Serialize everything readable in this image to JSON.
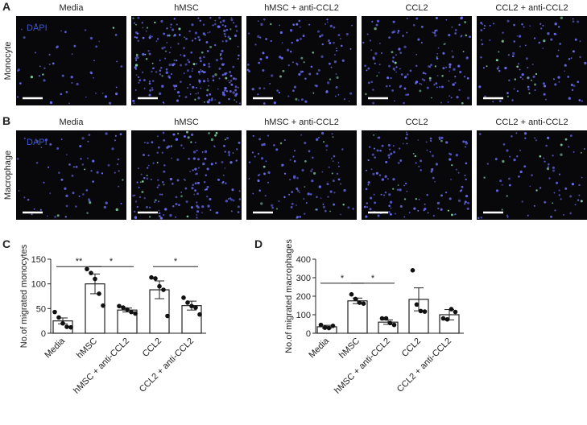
{
  "panels": [
    {
      "label": "A",
      "row_label": "Monocyte",
      "stain": "DAPI",
      "columns": [
        "Media",
        "hMSC",
        "hMSC + anti-CCL2",
        "CCL2",
        "CCL2 + anti-CCL2"
      ]
    },
    {
      "label": "B",
      "row_label": "Macrophage",
      "stain": "DAPI",
      "columns": [
        "Media",
        "hMSC",
        "hMSC + anti-CCL2",
        "CCL2",
        "CCL2 + anti-CCL2"
      ]
    }
  ],
  "chart_data": [
    {
      "type": "bar",
      "panel_label": "C",
      "y_label": "No.of migrated monocytes",
      "categories": [
        "Media",
        "hMSC",
        "hMSC + anti-CCL2",
        "CCL2",
        "CCL2 + anti-CCL2"
      ],
      "values": [
        25,
        100,
        47,
        88,
        56
      ],
      "errors": [
        6,
        20,
        4,
        18,
        9
      ],
      "points": [
        [
          43,
          32,
          20,
          13,
          12
        ],
        [
          130,
          122,
          110,
          80,
          56
        ],
        [
          55,
          52,
          48,
          43,
          40
        ],
        [
          113,
          111,
          95,
          88,
          35
        ],
        [
          72,
          62,
          55,
          52,
          38
        ]
      ],
      "ylim": [
        0,
        150
      ],
      "yticks": [
        0,
        50,
        100,
        150
      ],
      "annotations": [
        "**",
        "*",
        "*"
      ]
    },
    {
      "type": "bar",
      "panel_label": "D",
      "y_label": "No.of migrated macrophages",
      "categories": [
        "Media",
        "hMSC",
        "hMSC + anti-CCL2",
        "CCL2",
        "CCL2 + anti-CCL2"
      ],
      "values": [
        35,
        175,
        60,
        183,
        100
      ],
      "errors": [
        8,
        15,
        12,
        62,
        28
      ],
      "points": [
        [
          45,
          30,
          28,
          40
        ],
        [
          210,
          185,
          165,
          160
        ],
        [
          80,
          80,
          55,
          45
        ],
        [
          340,
          155,
          120,
          117
        ],
        [
          80,
          75,
          130,
          115
        ]
      ],
      "ylim": [
        0,
        400
      ],
      "yticks": [
        0,
        100,
        200,
        300,
        400
      ],
      "annotations": [
        "*",
        "*"
      ]
    }
  ]
}
